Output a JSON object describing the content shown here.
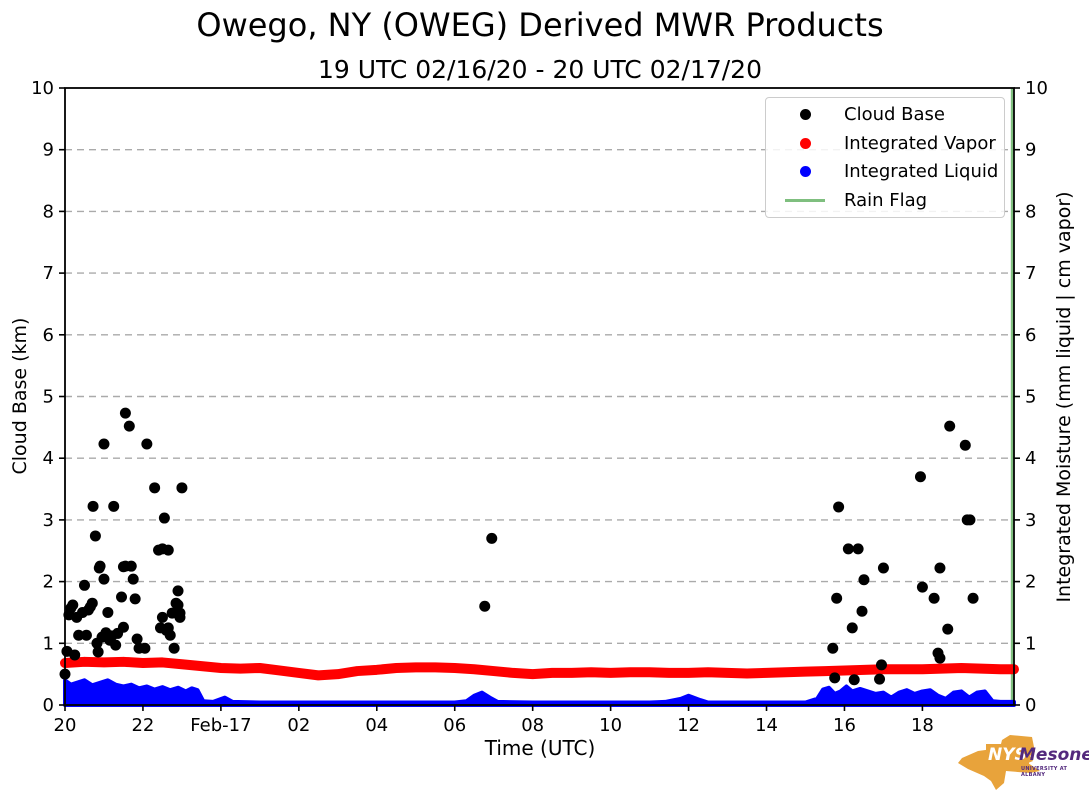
{
  "title": "Owego, NY (OWEG) Derived MWR Products",
  "subtitle": "19 UTC 02/16/20 - 20 UTC 02/17/20",
  "axes": {
    "xlabel": "Time (UTC)",
    "ylabel_left": "Cloud Base (km)",
    "ylabel_right": "Integrated Moisture (mm liquid | cm vapor)"
  },
  "logo": {
    "org": "NYS",
    "name": "Mesonet",
    "tagline": "UNIVERSITY AT ALBANY",
    "orange": "#E8A33B",
    "purple": "#53297D"
  },
  "chart_data": {
    "type": "scatter",
    "title": "Owego, NY (OWEG) Derived MWR Products",
    "subtitle": "19 UTC 02/16/20 - 20 UTC 02/17/20",
    "xlabel": "Time (UTC)",
    "ylabel_left": "Cloud Base (km)",
    "ylabel_right": "Integrated Moisture (mm liquid | cm vapor)",
    "x_units": "hours since 02/16/20 00 UTC",
    "xlim": [
      20,
      44.35
    ],
    "ylim": [
      0,
      10
    ],
    "grid": "horizontal-dashed",
    "gridline_color": "#aaaaaa",
    "y_gridlines": [
      1,
      2,
      3,
      4,
      5,
      6,
      7,
      8,
      9
    ],
    "y_ticks": [
      0,
      1,
      2,
      3,
      4,
      5,
      6,
      7,
      8,
      9,
      10
    ],
    "x_ticks": [
      {
        "t": 20,
        "label": "20"
      },
      {
        "t": 22,
        "label": "22"
      },
      {
        "t": 24,
        "label": "Feb-17"
      },
      {
        "t": 26,
        "label": "02"
      },
      {
        "t": 28,
        "label": "04"
      },
      {
        "t": 30,
        "label": "06"
      },
      {
        "t": 32,
        "label": "08"
      },
      {
        "t": 34,
        "label": "10"
      },
      {
        "t": 36,
        "label": "12"
      },
      {
        "t": 38,
        "label": "14"
      },
      {
        "t": 40,
        "label": "16"
      },
      {
        "t": 42,
        "label": "18"
      }
    ],
    "legend": [
      {
        "label": "Cloud Base",
        "color": "#000000",
        "marker": "dot"
      },
      {
        "label": "Integrated Vapor",
        "color": "#ff0000",
        "marker": "dot"
      },
      {
        "label": "Integrated Liquid",
        "color": "#0000ff",
        "marker": "dot"
      },
      {
        "label": "Rain Flag",
        "color": "#7fbf7f",
        "marker": "line"
      }
    ],
    "series": {
      "cloud_base": {
        "name": "Cloud Base",
        "color": "#000000",
        "units": "km",
        "points": [
          [
            20.0,
            0.5
          ],
          [
            20.05,
            0.87
          ],
          [
            20.1,
            1.46
          ],
          [
            20.15,
            1.57
          ],
          [
            20.2,
            1.62
          ],
          [
            20.25,
            0.81
          ],
          [
            20.3,
            1.42
          ],
          [
            20.35,
            1.13
          ],
          [
            20.45,
            1.5
          ],
          [
            20.5,
            1.94
          ],
          [
            20.55,
            1.13
          ],
          [
            20.6,
            1.54
          ],
          [
            20.65,
            1.59
          ],
          [
            20.7,
            1.65
          ],
          [
            20.72,
            3.22
          ],
          [
            20.78,
            2.74
          ],
          [
            20.82,
            1.0
          ],
          [
            20.85,
            0.86
          ],
          [
            20.88,
            2.22
          ],
          [
            20.9,
            2.25
          ],
          [
            20.95,
            1.1
          ],
          [
            21.0,
            4.23
          ],
          [
            21.0,
            2.04
          ],
          [
            21.05,
            1.17
          ],
          [
            21.1,
            1.5
          ],
          [
            21.15,
            1.05
          ],
          [
            21.2,
            1.12
          ],
          [
            21.25,
            3.22
          ],
          [
            21.3,
            0.97
          ],
          [
            21.35,
            1.16
          ],
          [
            21.45,
            1.75
          ],
          [
            21.5,
            2.24
          ],
          [
            21.5,
            1.26
          ],
          [
            21.55,
            4.73
          ],
          [
            21.55,
            2.25
          ],
          [
            21.65,
            4.52
          ],
          [
            21.7,
            2.25
          ],
          [
            21.75,
            2.04
          ],
          [
            21.8,
            1.72
          ],
          [
            21.85,
            1.07
          ],
          [
            21.9,
            0.92
          ],
          [
            22.05,
            0.92
          ],
          [
            22.1,
            4.23
          ],
          [
            22.3,
            3.52
          ],
          [
            22.4,
            2.51
          ],
          [
            22.45,
            1.25
          ],
          [
            22.5,
            2.53
          ],
          [
            22.5,
            1.42
          ],
          [
            22.55,
            3.03
          ],
          [
            22.6,
            1.21
          ],
          [
            22.65,
            2.51
          ],
          [
            22.65,
            1.25
          ],
          [
            22.7,
            1.13
          ],
          [
            22.75,
            1.49
          ],
          [
            22.8,
            0.92
          ],
          [
            22.85,
            1.65
          ],
          [
            22.9,
            1.85
          ],
          [
            22.9,
            1.62
          ],
          [
            22.95,
            1.49
          ],
          [
            22.95,
            1.42
          ],
          [
            23.0,
            3.52
          ],
          [
            30.77,
            1.6
          ],
          [
            30.95,
            2.7
          ],
          [
            39.7,
            0.92
          ],
          [
            39.75,
            0.44
          ],
          [
            39.8,
            1.73
          ],
          [
            39.85,
            3.21
          ],
          [
            40.1,
            2.53
          ],
          [
            40.2,
            1.25
          ],
          [
            40.25,
            0.41
          ],
          [
            40.35,
            2.53
          ],
          [
            40.45,
            1.52
          ],
          [
            40.5,
            2.03
          ],
          [
            40.9,
            0.42
          ],
          [
            40.95,
            0.65
          ],
          [
            41.0,
            2.22
          ],
          [
            41.95,
            3.7
          ],
          [
            42.0,
            1.91
          ],
          [
            42.3,
            1.73
          ],
          [
            42.4,
            0.84
          ],
          [
            42.45,
            2.22
          ],
          [
            42.45,
            0.76
          ],
          [
            42.65,
            1.23
          ],
          [
            42.7,
            4.52
          ],
          [
            43.1,
            4.21
          ],
          [
            43.15,
            3.0
          ],
          [
            43.22,
            3.0
          ],
          [
            43.3,
            1.73
          ]
        ]
      },
      "integrated_vapor": {
        "name": "Integrated Vapor",
        "color": "#ff0000",
        "units": "cm",
        "points": [
          [
            20.0,
            0.68
          ],
          [
            20.5,
            0.7
          ],
          [
            21.0,
            0.69
          ],
          [
            21.5,
            0.7
          ],
          [
            22.0,
            0.68
          ],
          [
            22.5,
            0.69
          ],
          [
            23.0,
            0.66
          ],
          [
            23.5,
            0.63
          ],
          [
            24.0,
            0.6
          ],
          [
            24.5,
            0.59
          ],
          [
            25.0,
            0.6
          ],
          [
            25.5,
            0.56
          ],
          [
            26.0,
            0.52
          ],
          [
            26.5,
            0.48
          ],
          [
            27.0,
            0.5
          ],
          [
            27.5,
            0.55
          ],
          [
            28.0,
            0.57
          ],
          [
            28.5,
            0.6
          ],
          [
            29.0,
            0.61
          ],
          [
            29.5,
            0.61
          ],
          [
            30.0,
            0.6
          ],
          [
            30.5,
            0.58
          ],
          [
            31.0,
            0.55
          ],
          [
            31.5,
            0.52
          ],
          [
            32.0,
            0.5
          ],
          [
            32.5,
            0.52
          ],
          [
            33.0,
            0.52
          ],
          [
            33.5,
            0.53
          ],
          [
            34.0,
            0.52
          ],
          [
            34.5,
            0.53
          ],
          [
            35.0,
            0.53
          ],
          [
            35.5,
            0.52
          ],
          [
            36.0,
            0.52
          ],
          [
            36.5,
            0.53
          ],
          [
            37.0,
            0.52
          ],
          [
            37.5,
            0.51
          ],
          [
            38.0,
            0.52
          ],
          [
            38.5,
            0.53
          ],
          [
            39.0,
            0.54
          ],
          [
            39.5,
            0.55
          ],
          [
            40.0,
            0.56
          ],
          [
            40.5,
            0.57
          ],
          [
            41.0,
            0.58
          ],
          [
            41.5,
            0.58
          ],
          [
            42.0,
            0.58
          ],
          [
            42.5,
            0.59
          ],
          [
            43.0,
            0.6
          ],
          [
            43.5,
            0.59
          ],
          [
            44.0,
            0.58
          ],
          [
            44.35,
            0.58
          ]
        ]
      },
      "integrated_liquid": {
        "name": "Integrated Liquid",
        "color": "#0000ff",
        "units": "mm",
        "points": [
          [
            20.0,
            0.4
          ],
          [
            20.15,
            0.33
          ],
          [
            20.3,
            0.36
          ],
          [
            20.5,
            0.4
          ],
          [
            20.7,
            0.32
          ],
          [
            20.9,
            0.36
          ],
          [
            21.1,
            0.4
          ],
          [
            21.3,
            0.33
          ],
          [
            21.5,
            0.3
          ],
          [
            21.7,
            0.33
          ],
          [
            21.9,
            0.27
          ],
          [
            22.1,
            0.3
          ],
          [
            22.3,
            0.25
          ],
          [
            22.5,
            0.29
          ],
          [
            22.7,
            0.24
          ],
          [
            22.9,
            0.28
          ],
          [
            23.1,
            0.22
          ],
          [
            23.25,
            0.27
          ],
          [
            23.4,
            0.24
          ],
          [
            23.55,
            0.06
          ],
          [
            23.8,
            0.05
          ],
          [
            24.1,
            0.12
          ],
          [
            24.3,
            0.05
          ],
          [
            25.0,
            0.04
          ],
          [
            26.0,
            0.04
          ],
          [
            27.0,
            0.04
          ],
          [
            28.0,
            0.04
          ],
          [
            29.0,
            0.04
          ],
          [
            30.0,
            0.04
          ],
          [
            30.3,
            0.06
          ],
          [
            30.5,
            0.15
          ],
          [
            30.7,
            0.2
          ],
          [
            30.9,
            0.12
          ],
          [
            31.1,
            0.05
          ],
          [
            32.0,
            0.04
          ],
          [
            33.0,
            0.04
          ],
          [
            34.0,
            0.04
          ],
          [
            35.0,
            0.04
          ],
          [
            35.4,
            0.05
          ],
          [
            35.8,
            0.1
          ],
          [
            36.0,
            0.15
          ],
          [
            36.3,
            0.08
          ],
          [
            36.5,
            0.04
          ],
          [
            37.0,
            0.04
          ],
          [
            38.0,
            0.04
          ],
          [
            39.0,
            0.04
          ],
          [
            39.3,
            0.1
          ],
          [
            39.45,
            0.25
          ],
          [
            39.6,
            0.28
          ],
          [
            39.75,
            0.18
          ],
          [
            39.9,
            0.22
          ],
          [
            40.05,
            0.3
          ],
          [
            40.2,
            0.22
          ],
          [
            40.4,
            0.26
          ],
          [
            40.6,
            0.22
          ],
          [
            40.8,
            0.18
          ],
          [
            41.0,
            0.2
          ],
          [
            41.2,
            0.12
          ],
          [
            41.4,
            0.2
          ],
          [
            41.6,
            0.24
          ],
          [
            41.8,
            0.18
          ],
          [
            42.0,
            0.22
          ],
          [
            42.2,
            0.24
          ],
          [
            42.4,
            0.15
          ],
          [
            42.6,
            0.1
          ],
          [
            42.8,
            0.2
          ],
          [
            43.0,
            0.22
          ],
          [
            43.2,
            0.12
          ],
          [
            43.4,
            0.2
          ],
          [
            43.6,
            0.22
          ],
          [
            43.8,
            0.06
          ],
          [
            44.0,
            0.05
          ],
          [
            44.35,
            0.05
          ]
        ]
      },
      "rain_flag": {
        "name": "Rain Flag",
        "color": "#7fbf7f",
        "note": "no rain during period; flag line visible only as vertical green line at right edge of plot",
        "x": 44.3
      }
    }
  }
}
